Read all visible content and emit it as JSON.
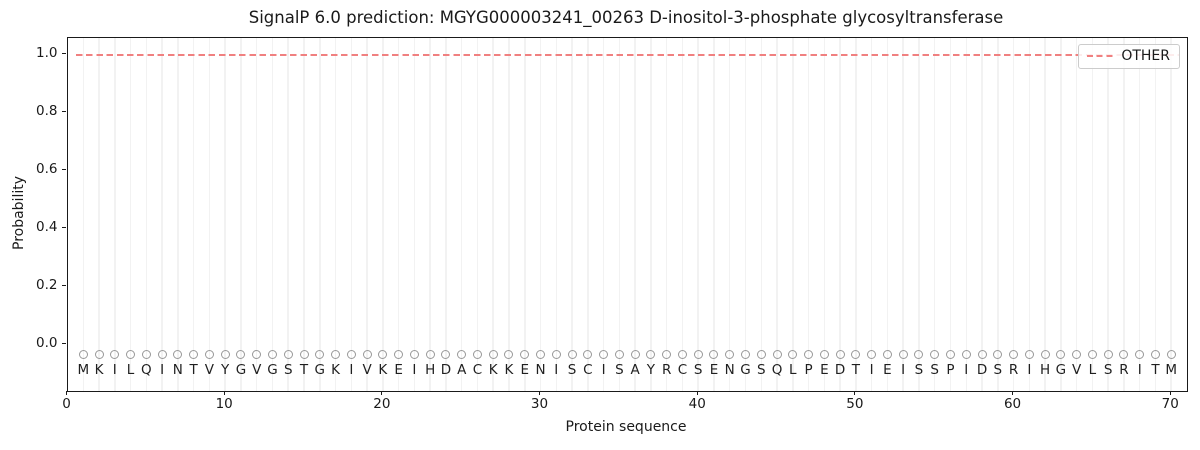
{
  "chart_data": {
    "type": "line",
    "title": "SignalP 6.0 prediction: MGYG000003241_00263 D-inositol-3-phosphate glycosyltransferase",
    "xlabel": "Protein sequence",
    "ylabel": "Probability",
    "xlim": [
      0,
      71
    ],
    "ylim": [
      -0.16,
      1.06
    ],
    "x_ticks": [
      0,
      10,
      20,
      30,
      40,
      50,
      60,
      70
    ],
    "y_ticks": [
      0.0,
      0.2,
      0.4,
      0.6,
      0.8,
      1.0
    ],
    "grid": {
      "vertical_per_residue": true,
      "horizontal": false,
      "color": "#f2f2f2"
    },
    "series": [
      {
        "name": "OTHER",
        "linestyle": "dashed",
        "color": "#f08080",
        "x_start": 1,
        "x_end": 70,
        "constant_y": 1.0
      }
    ],
    "legend": {
      "position": "upper-right",
      "entries": [
        {
          "label": "OTHER",
          "color": "#f08080",
          "linestyle": "dashed"
        }
      ]
    },
    "protein_sequence": "MKILQINTVYGVGSTGKIVKEIHDACKKENISCISAYRCSENGSQLPEDTIEISSPIDSRIHGVLSRITM",
    "sequence_length": 70,
    "residue_marker": "o",
    "marker_color": "#999999",
    "marker_y": -0.033,
    "letter_y": -0.086,
    "letter_color": "#1f1f1f"
  }
}
